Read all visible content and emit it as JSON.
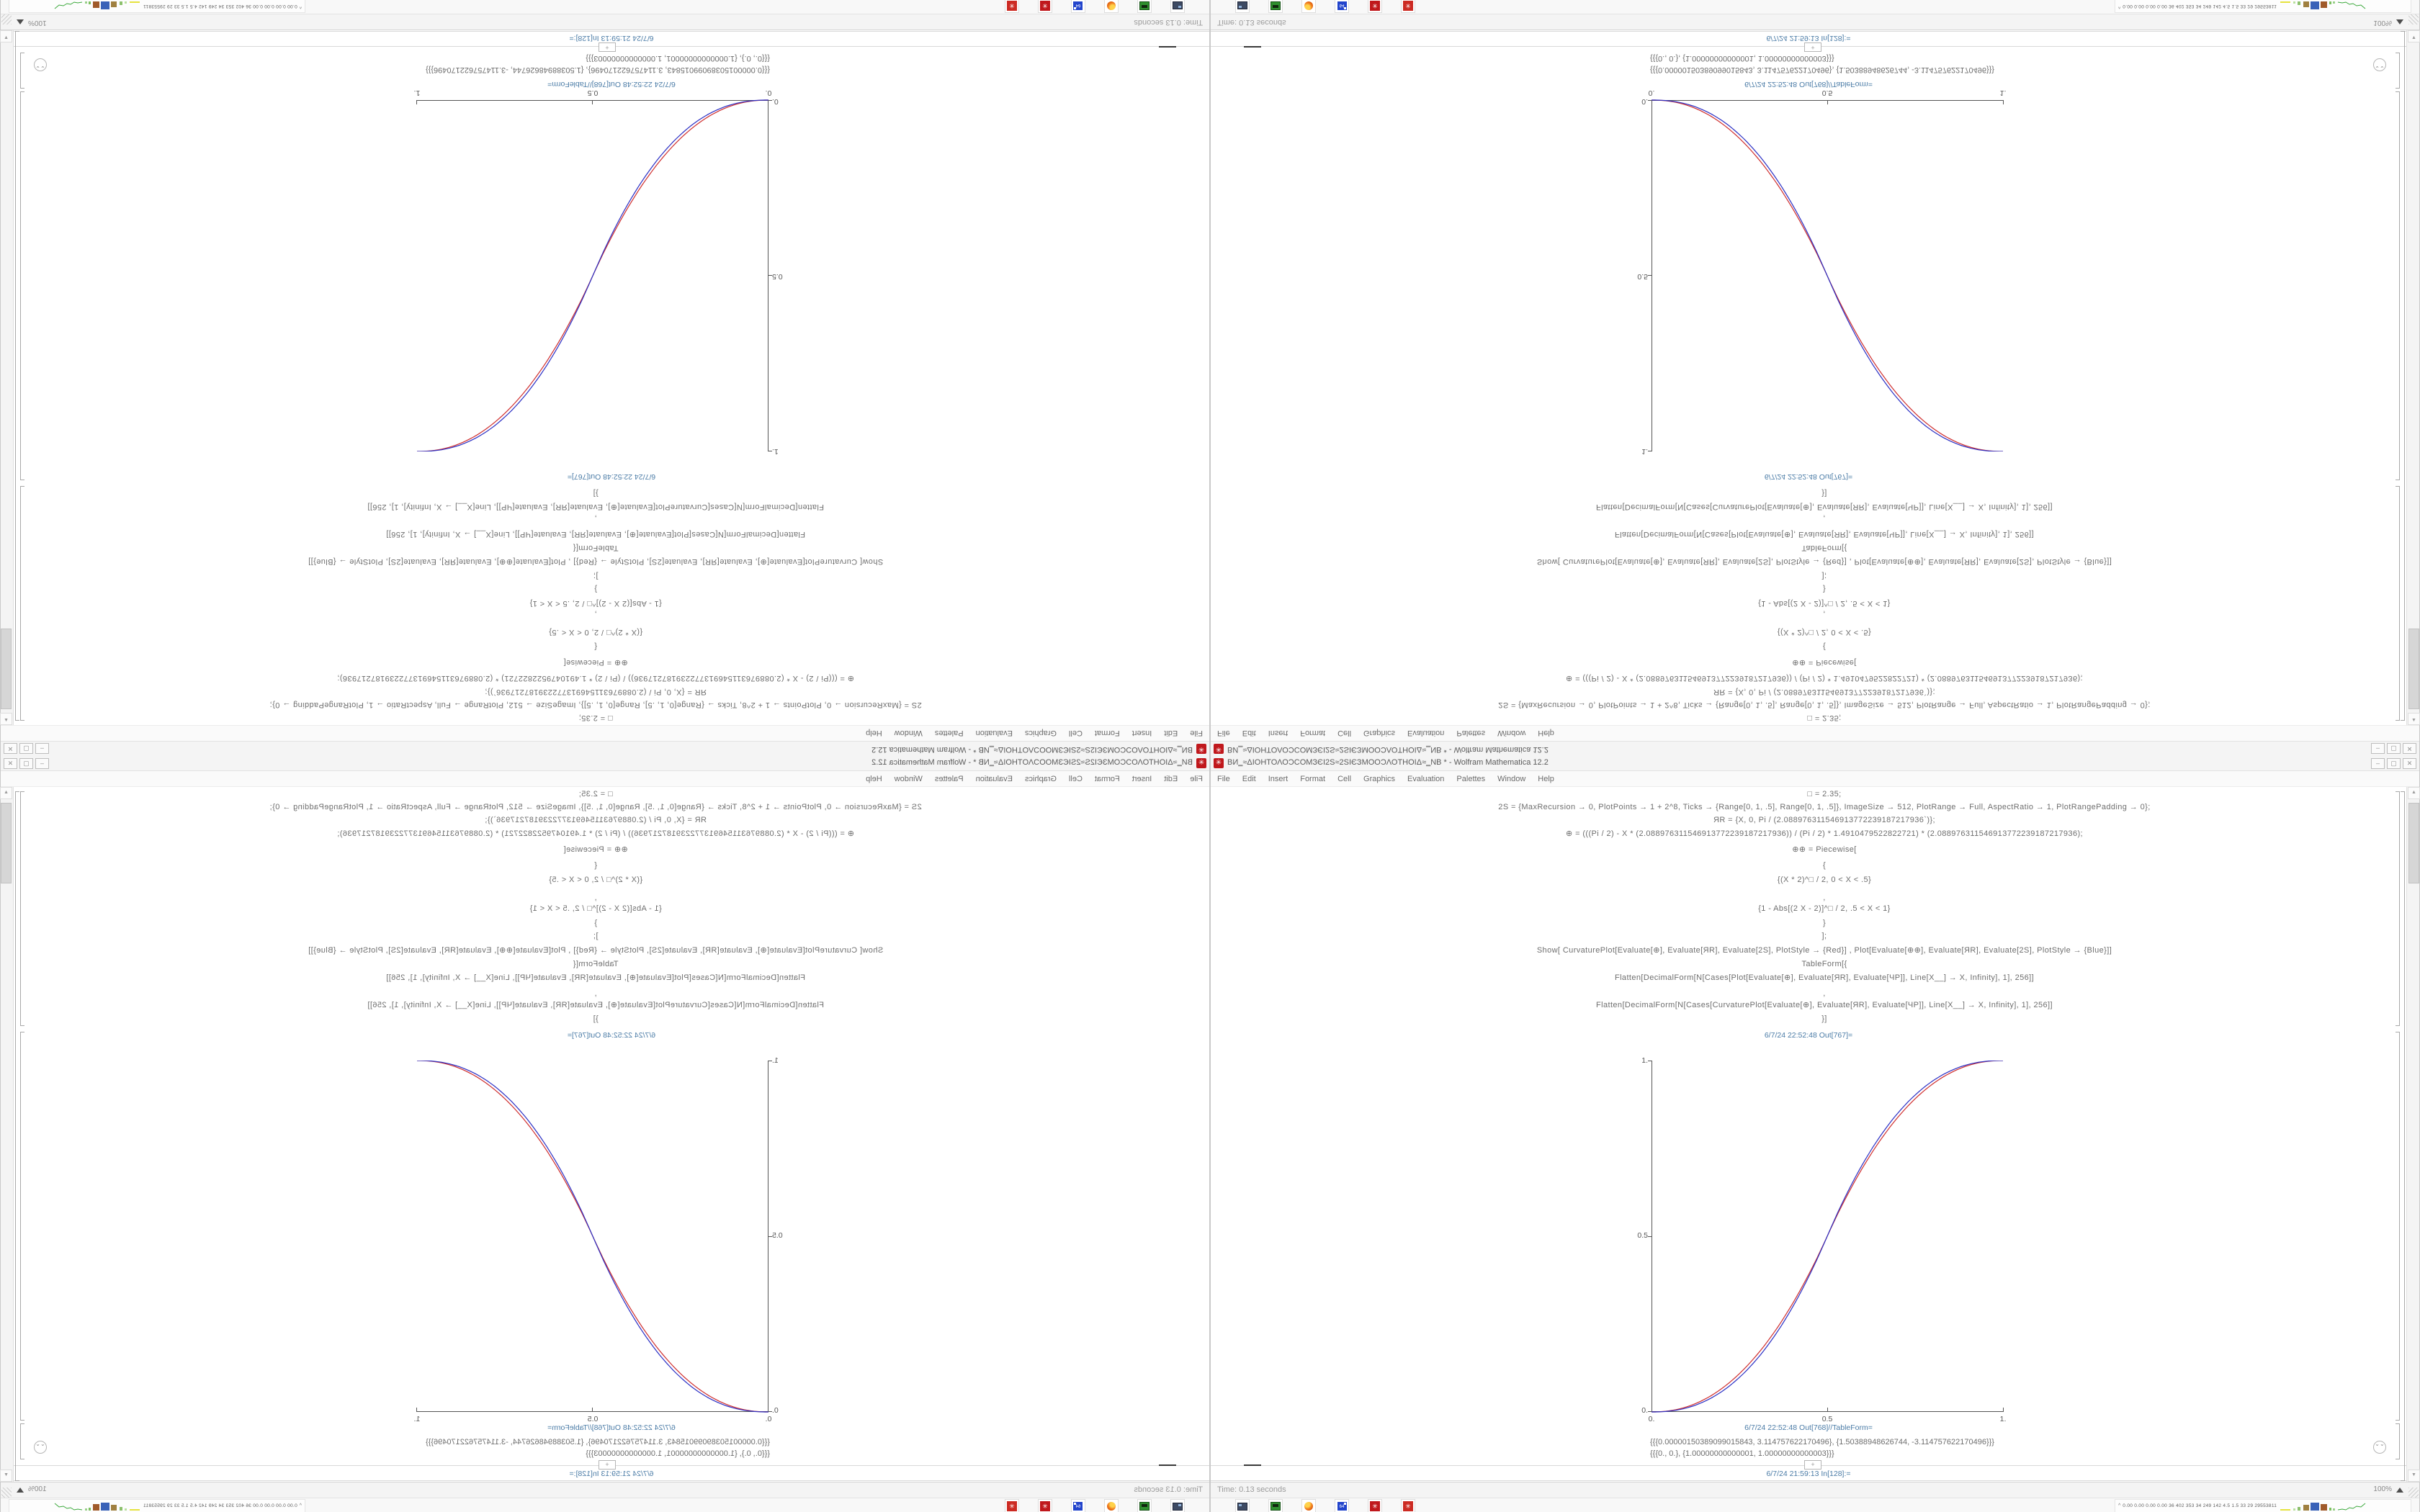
{
  "window": {
    "title": "ВИ‗≈ΔΙΟΗΤΟΛΟϽCOMЗЄІ2S≈2SІЄЗMOΟϽΛΟΤΗΟІΔ≈‗NB * - Wolfram Mathematica 12.2",
    "icon_glyph": "✳",
    "controls": {
      "minimize": "–",
      "maximize": "▢",
      "close": "✕"
    }
  },
  "menu": {
    "items": [
      "File",
      "Edit",
      "Insert",
      "Format",
      "Cell",
      "Graphics",
      "Evaluation",
      "Palettes",
      "Window",
      "Help"
    ]
  },
  "notebook": {
    "code_lines": [
      "□ = 2.35;",
      "2S = {MaxRecursion → 0, PlotPoints → 1 + 2^8, Ticks → {Range[0, 1, .5], Range[0, 1, .5]}, ImageSize → 512, PlotRange → Full, AspectRatio → 1, PlotRangePadding → 0};",
      "ЯR = {X, 0, Pi / (2.088976311546913772239187217936`)};",
      "⊕ = (((Pi / 2) - X * (2.088976311546913772239187217936)) / (Pi / 2) * 1.4910479522822721) * (2.088976311546913772239187217936);",
      "⊕⊕ = Piecewise[",
      "{",
      "{(X * 2)^□ / 2, 0 < X < .5}",
      ",",
      "{1 - Abs[(2 X - 2)]^□ / 2, .5 < X < 1}",
      "}",
      "];",
      "Show[  CurvaturePlot[Evaluate[⊕], Evaluate[ЯR], Evaluate[2S], PlotStyle → {Red}]  ,  Plot[Evaluate[⊕⊕], Evaluate[ЯR], Evaluate[2S], PlotStyle → {Blue}]]",
      "TableForm[{",
      "Flatten[DecimalForm[N[Cases[Plot[Evaluate[⊕], Evaluate[ЯR], Evaluate[ЧP]], Line[X__] → X, Infinity], 1], 256]]",
      ",",
      "Flatten[DecimalForm[N[Cases[CurvaturePlot[Evaluate[⊕], Evaluate[ЯR], Evaluate[ЧP]], Line[X__] → X, Infinity], 1], 256]]",
      "}]"
    ],
    "out1_label": "6/7/24 22:52:48 Out[767]=",
    "out2_label": "6/7/24 22:52:48 Out[768]//TableForm=",
    "out2_row1": "{{{0.00000150389099015843, 3.114757622170496}, {1.50388948626744, -3.114757622170496}}}",
    "out2_row2": "{{{0., 0.}, {1.00000000000001, 1.00000000000003}}}",
    "in_label": "6/7/24 21:59:13 In[128]:=",
    "insert_plus": "+",
    "group_chevron": "⌄⌄",
    "plot": {
      "type": "line",
      "x_ticks": [
        "0.",
        "0.5",
        "1."
      ],
      "y_ticks": [
        "0.",
        "0.5",
        "1."
      ],
      "xlim": [
        0,
        1
      ],
      "ylim": [
        0,
        1
      ],
      "curves": [
        {
          "name": "curvature-plot-red",
          "color": "#cf2d2d",
          "exponent": 2.2
        },
        {
          "name": "plot-blue",
          "color": "#2b2fc4",
          "exponent": 2.35
        }
      ]
    }
  },
  "scrollbar": {
    "up": "▲",
    "down": "▼"
  },
  "statusbar": {
    "left": "Time: 0.13 seconds",
    "zoom": "100%"
  },
  "taskbar": {
    "icons": [
      {
        "name": "system-monitor",
        "glyph": ""
      },
      {
        "name": "terminal-green",
        "glyph": ""
      },
      {
        "name": "firefox-browser",
        "glyph": ""
      },
      {
        "name": "floppy-64",
        "glyph": "64"
      },
      {
        "name": "mathematica-a",
        "glyph": "✳"
      },
      {
        "name": "mathematica-b",
        "glyph": "✳"
      }
    ],
    "tray_caret": "^",
    "tray_numbers": "0.00 0.00 0.00 0.00   36   402 353   34   249 142 4.5   1.5   33   29 29553811"
  }
}
